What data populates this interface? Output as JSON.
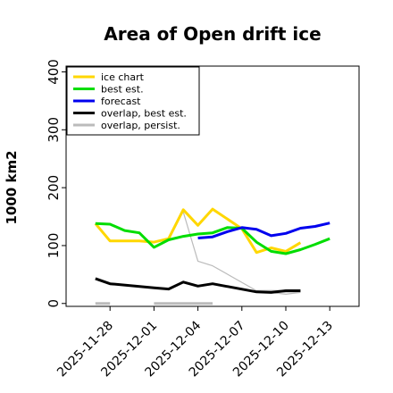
{
  "chart_data": {
    "type": "line",
    "title": "Area of Open drift ice",
    "ylabel": "1000 km2",
    "xlabel": "",
    "ylim": [
      -5,
      410
    ],
    "yticks": [
      0,
      100,
      200,
      300,
      400
    ],
    "ytick_labels": [
      "0",
      "100",
      "200",
      "300",
      "400"
    ],
    "xlim": [
      "2025-11-25",
      "2025-12-15"
    ],
    "xticks": [
      "2025-11-28",
      "2025-12-01",
      "2025-12-04",
      "2025-12-07",
      "2025-12-10",
      "2025-12-13"
    ],
    "xtick_labels": [
      "2025-11-28",
      "2025-12-01",
      "2025-12-04",
      "2025-12-07",
      "2025-12-10",
      "2025-12-13"
    ],
    "xtick_colors": [
      "#000000",
      "#000000",
      "#008000",
      "#000000",
      "#000000",
      "#000000"
    ],
    "grid": false,
    "legend_position": "top-left",
    "series": [
      {
        "name": "ice chart",
        "color": "#ffd700",
        "points": [
          [
            "2025-11-27",
            138
          ],
          [
            "2025-11-28",
            108
          ],
          [
            "2025-11-30",
            108
          ],
          [
            "2025-12-01",
            106
          ],
          [
            "2025-12-02",
            112
          ],
          [
            "2025-12-03",
            162
          ],
          [
            "2025-12-04",
            135
          ],
          [
            "2025-12-05",
            163
          ],
          [
            "2025-12-07",
            129
          ],
          [
            "2025-12-08",
            88
          ],
          [
            "2025-12-09",
            96
          ],
          [
            "2025-12-10",
            90
          ],
          [
            "2025-12-11",
            105
          ]
        ]
      },
      {
        "name": "best est.",
        "color": "#00dd00",
        "points": [
          [
            "2025-11-27",
            138
          ],
          [
            "2025-11-28",
            137
          ],
          [
            "2025-11-29",
            126
          ],
          [
            "2025-11-30",
            122
          ],
          [
            "2025-12-01",
            97
          ],
          [
            "2025-12-02",
            110
          ],
          [
            "2025-12-03",
            116
          ],
          [
            "2025-12-04",
            120
          ],
          [
            "2025-12-05",
            122
          ],
          [
            "2025-12-06",
            131
          ],
          [
            "2025-12-07",
            130
          ],
          [
            "2025-12-08",
            106
          ],
          [
            "2025-12-09",
            90
          ],
          [
            "2025-12-10",
            86
          ],
          [
            "2025-12-11",
            93
          ],
          [
            "2025-12-12",
            102
          ],
          [
            "2025-12-13",
            112
          ]
        ]
      },
      {
        "name": "forecast",
        "color": "#0000ee",
        "points": [
          [
            "2025-12-04",
            113
          ],
          [
            "2025-12-05",
            115
          ],
          [
            "2025-12-06",
            124
          ],
          [
            "2025-12-07",
            131
          ],
          [
            "2025-12-08",
            128
          ],
          [
            "2025-12-09",
            117
          ],
          [
            "2025-12-10",
            121
          ],
          [
            "2025-12-11",
            130
          ],
          [
            "2025-12-12",
            133
          ],
          [
            "2025-12-13",
            139
          ]
        ]
      },
      {
        "name": "overlap, best est.",
        "color": "#000000",
        "points": [
          [
            "2025-11-27",
            43
          ],
          [
            "2025-11-28",
            34
          ],
          [
            "2025-12-01",
            27
          ],
          [
            "2025-12-02",
            25
          ],
          [
            "2025-12-03",
            37
          ],
          [
            "2025-12-04",
            30
          ],
          [
            "2025-12-05",
            34
          ],
          [
            "2025-12-08",
            20
          ],
          [
            "2025-12-09",
            19
          ],
          [
            "2025-12-10",
            22
          ],
          [
            "2025-12-11",
            22
          ]
        ]
      },
      {
        "name": "overlap, persist.",
        "color": "#bbbbbb",
        "segments": [
          [
            [
              "2025-11-27",
              0
            ],
            [
              "2025-11-28",
              0
            ]
          ],
          [
            [
              "2025-12-01",
              0
            ],
            [
              "2025-12-05",
              0
            ]
          ],
          [
            [
              "2025-12-03",
              158
            ],
            [
              "2025-12-04",
              73
            ],
            [
              "2025-12-05",
              65
            ],
            [
              "2025-12-08",
              22
            ],
            [
              "2025-12-10",
              16
            ],
            [
              "2025-12-11",
              19
            ]
          ],
          [
            [
              "2025-12-08",
              21
            ],
            [
              "2025-12-11",
              21
            ]
          ]
        ]
      }
    ]
  }
}
